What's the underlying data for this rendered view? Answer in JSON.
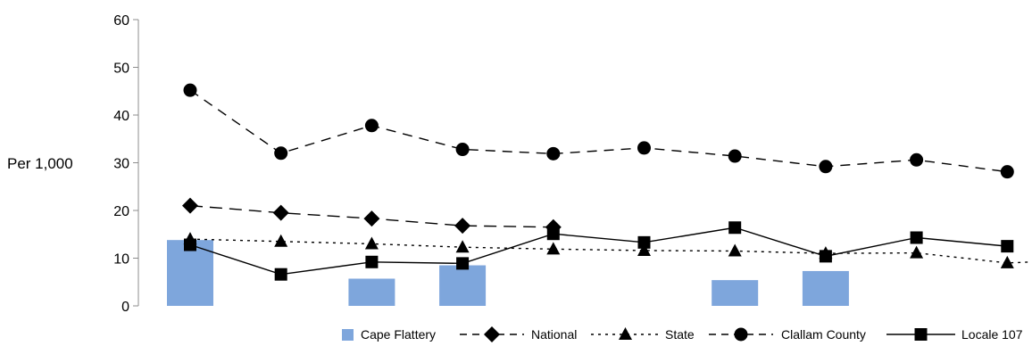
{
  "chart_data": {
    "type": "bar",
    "ylabel": "Per 1,000",
    "ylim": [
      0,
      60
    ],
    "yticks": [
      "0",
      "10",
      "20",
      "30",
      "40",
      "50",
      "60"
    ],
    "categories": [
      "",
      "",
      "",
      "",
      "",
      "",
      "",
      "",
      "",
      ""
    ],
    "series": [
      {
        "name": "Cape Flattery",
        "type": "bar",
        "color": "#7ea6dc",
        "values": [
          13.8,
          null,
          5.7,
          8.5,
          null,
          null,
          5.4,
          7.3,
          null,
          null
        ]
      },
      {
        "name": "National",
        "type": "line",
        "marker": "diamond",
        "dash": "long-dash",
        "color": "#000000",
        "values": [
          21.0,
          19.5,
          18.3,
          16.8,
          16.5,
          null,
          null,
          null,
          null,
          null
        ]
      },
      {
        "name": "State",
        "type": "line",
        "marker": "triangle",
        "dash": "dotted",
        "color": "#000000",
        "values": [
          14.0,
          13.5,
          13.0,
          12.3,
          11.9,
          11.6,
          11.5,
          11.0,
          11.1,
          9.0
        ]
      },
      {
        "name": "Clallam County",
        "type": "line",
        "marker": "circle",
        "dash": "dashed",
        "color": "#000000",
        "values": [
          45.2,
          32.0,
          37.8,
          32.8,
          31.9,
          33.1,
          31.4,
          29.2,
          30.6,
          28.1
        ]
      },
      {
        "name": "Locale 107",
        "type": "line",
        "marker": "square",
        "dash": "solid",
        "color": "#000000",
        "values": [
          12.8,
          6.6,
          9.2,
          8.9,
          15.1,
          13.3,
          16.4,
          10.4,
          14.3,
          12.5
        ]
      }
    ],
    "grid": false,
    "legend_position": "bottom-right"
  }
}
